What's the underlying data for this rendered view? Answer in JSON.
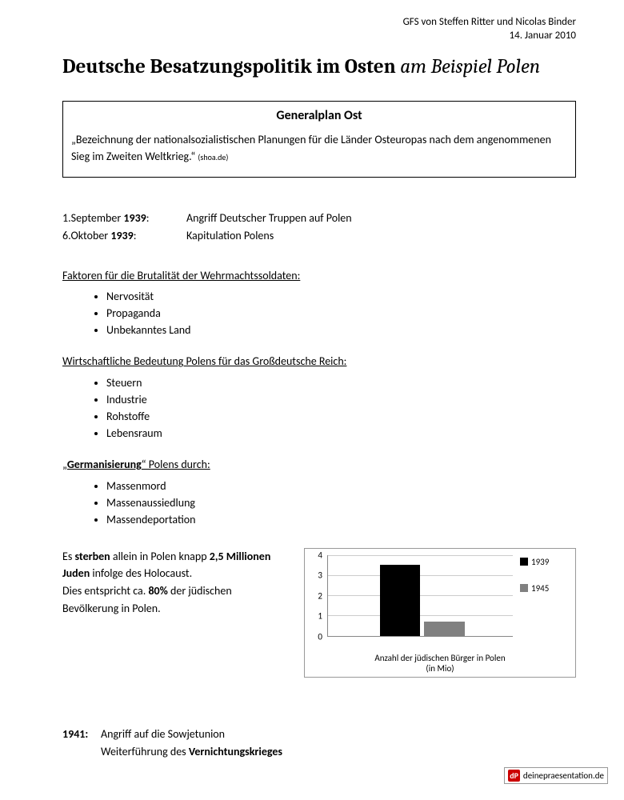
{
  "meta": {
    "line1": "GFS von Steffen Ritter und Nicolas Binder",
    "line2": "14. Januar 2010"
  },
  "title": {
    "bold": "Deutsche Besatzungspolitik im Osten",
    "italic": " am Beispiel Polen"
  },
  "box": {
    "title": "Generalplan Ost",
    "quote": "„Bezeichnung der nationalsozialistischen Planungen für die Länder Osteuropas nach dem angenommenen Sieg im Zweiten Weltkrieg.“ ",
    "source": "(shoa.de)"
  },
  "timeline": [
    {
      "date_pre": "1.September ",
      "date_bold": "1939",
      "date_post": ":",
      "text": "Angriff Deutscher Truppen auf Polen"
    },
    {
      "date_pre": "6.Oktober ",
      "date_bold": "1939",
      "date_post": ":",
      "text": "Kapitulation Polens"
    }
  ],
  "sections": [
    {
      "heading": "Faktoren für die Brutalität der Wehrmachtssoldaten:",
      "items": [
        "Nervosität",
        "Propaganda",
        "Unbekanntes Land"
      ]
    },
    {
      "heading": "Wirtschaftliche Bedeutung Polens für das Großdeutsche Reich:",
      "items": [
        "Steuern",
        "Industrie",
        "Rohstoffe",
        "Lebensraum"
      ]
    },
    {
      "heading_pre": "„",
      "heading_bold": "Germanisierung",
      "heading_post": "“ Polens durch:",
      "items": [
        "Massenmord",
        "Massenaussiedlung",
        "Massendeportation"
      ]
    }
  ],
  "chart_text": {
    "p1a": "Es ",
    "p1b": "sterben",
    "p1c": " allein in Polen knapp ",
    "p1d": "2,5 Millionen Juden",
    "p1e": " infolge des Holocaust.",
    "p2a": "Dies entspricht ca. ",
    "p2b": "80%",
    "p2c": " der jüdischen Bevölkerung in Polen."
  },
  "chart": {
    "type": "bar",
    "ylim": [
      0,
      4
    ],
    "ytick_step": 1,
    "grid_color": "#cccccc",
    "axis_color": "#888888",
    "background_color": "#ffffff",
    "bars": [
      {
        "label": "1939",
        "value": 3.5,
        "color": "#000000",
        "left_pct": 28,
        "width_pct": 22
      },
      {
        "label": "1945",
        "value": 0.7,
        "color": "#808080",
        "left_pct": 52,
        "width_pct": 22
      }
    ],
    "caption_l1": "Anzahl der jüdischen Bürger in Polen",
    "caption_l2": "(in Mio)"
  },
  "footer": {
    "year": "1941:",
    "line1": "Angriff auf die Sowjetunion",
    "line2a": "Weiterführung des ",
    "line2b": "Vernichtungskrieges"
  },
  "watermark": {
    "logo": "dP",
    "text": "deinepraesentation.de"
  }
}
